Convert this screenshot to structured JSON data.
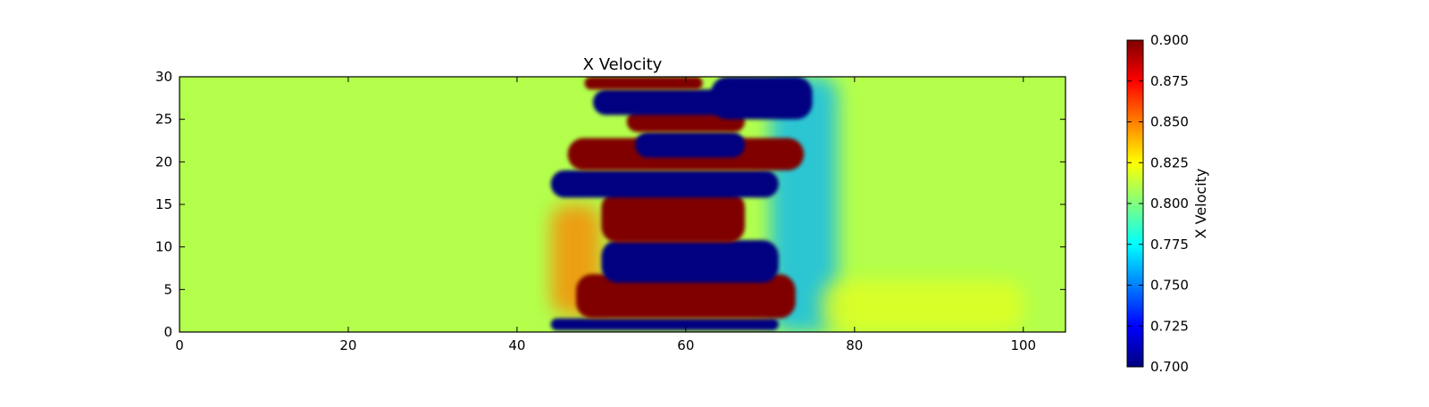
{
  "chart_data": {
    "type": "heatmap",
    "title": "X Velocity",
    "xlabel": "",
    "ylabel": "",
    "xlim": [
      0,
      105
    ],
    "ylim": [
      0,
      30
    ],
    "xticks": [
      0,
      20,
      40,
      60,
      80,
      100
    ],
    "yticks": [
      0,
      5,
      10,
      15,
      20,
      25,
      30
    ],
    "grid": false,
    "colormap": "jet",
    "background_value": 0.81,
    "colorbar": {
      "label": "X Velocity",
      "min": 0.7,
      "max": 0.9,
      "ticks": [
        "0.700",
        "0.725",
        "0.750",
        "0.775",
        "0.800",
        "0.825",
        "0.850",
        "0.875",
        "0.900"
      ]
    },
    "features": [
      {
        "value": 0.7,
        "x": [
          44,
          71
        ],
        "y": [
          0.2,
          1.6
        ],
        "note": "bottom low-velocity band"
      },
      {
        "value": 0.9,
        "x": [
          47,
          73
        ],
        "y": [
          1.6,
          6.8
        ],
        "note": "high-velocity band"
      },
      {
        "value": 0.7,
        "x": [
          50,
          71
        ],
        "y": [
          5.8,
          10.8
        ],
        "note": "low-velocity band"
      },
      {
        "value": 0.9,
        "x": [
          50,
          67
        ],
        "y": [
          10.5,
          16.5
        ],
        "note": "high-velocity band"
      },
      {
        "value": 0.7,
        "x": [
          44,
          71
        ],
        "y": [
          15.8,
          19.0
        ],
        "note": "low-velocity band"
      },
      {
        "value": 0.9,
        "x": [
          46,
          74
        ],
        "y": [
          19.0,
          22.8
        ],
        "note": "high-velocity band"
      },
      {
        "value": 0.7,
        "x": [
          54,
          67
        ],
        "y": [
          20.5,
          23.5
        ],
        "note": "low-velocity pocket"
      },
      {
        "value": 0.9,
        "x": [
          53,
          67
        ],
        "y": [
          23.5,
          26.0
        ],
        "note": "high-velocity band"
      },
      {
        "value": 0.7,
        "x": [
          49,
          65
        ],
        "y": [
          25.5,
          28.5
        ],
        "note": "low-velocity band"
      },
      {
        "value": 0.9,
        "x": [
          48,
          62
        ],
        "y": [
          28.5,
          30
        ],
        "note": "top high-velocity band"
      },
      {
        "value": 0.7,
        "x": [
          63,
          75
        ],
        "y": [
          25,
          30
        ],
        "note": "low-velocity region top right"
      },
      {
        "value": 0.85,
        "x": [
          44,
          50
        ],
        "y": [
          2,
          15
        ],
        "note": "orange leading edge"
      },
      {
        "value": 0.76,
        "x": [
          70,
          78
        ],
        "y": [
          0,
          30
        ],
        "note": "cyan trailing region"
      },
      {
        "value": 0.82,
        "x": [
          76,
          100
        ],
        "y": [
          0,
          6
        ],
        "note": "yellow-green wake"
      }
    ]
  }
}
